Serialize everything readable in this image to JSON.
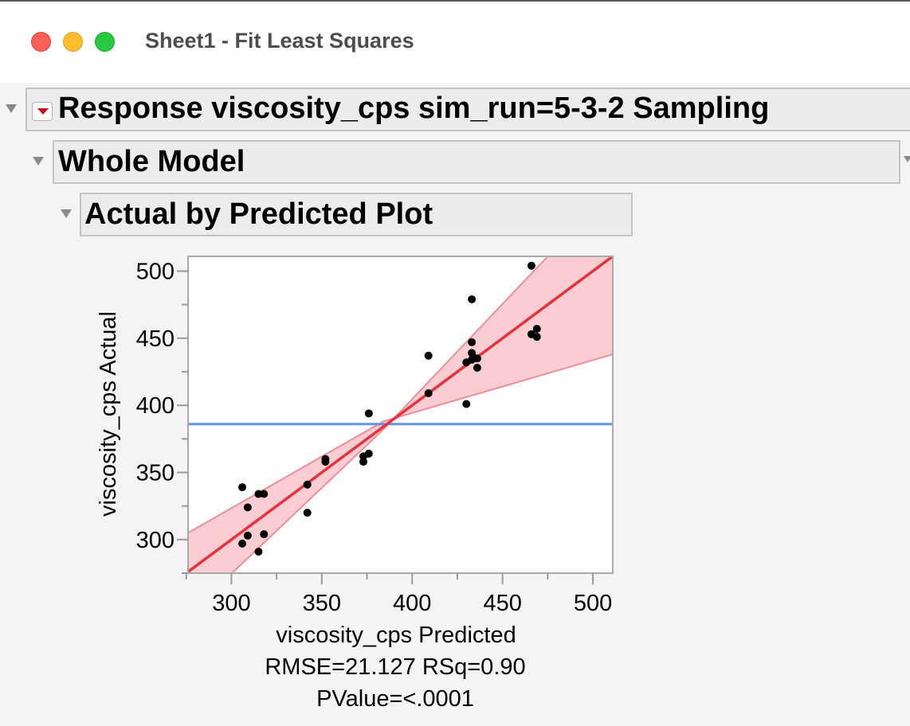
{
  "window": {
    "title": "Sheet1 - Fit Least Squares"
  },
  "report": {
    "response_title": "Response viscosity_cps sim_run=5-3-2 Sampling",
    "whole_model_title": "Whole Model",
    "plot_title": "Actual by Predicted Plot",
    "stats": {
      "rmse_rsq": "RMSE=21.127 RSq=0.90",
      "pvalue": "PValue=<.0001"
    }
  },
  "chart_data": {
    "type": "scatter",
    "xlabel": "viscosity_cps Predicted",
    "ylabel": "viscosity_cps Actual",
    "xlim": [
      276,
      511
    ],
    "ylim": [
      275,
      511
    ],
    "x_ticks": [
      300,
      350,
      400,
      450,
      500
    ],
    "y_ticks": [
      300,
      350,
      400,
      450,
      500
    ],
    "mean_line_y": 386,
    "fit_line": [
      [
        276,
        276
      ],
      [
        511,
        511
      ]
    ],
    "confidence_band": {
      "upper": [
        [
          276,
          305
        ],
        [
          384,
          388
        ],
        [
          511,
          438
        ]
      ],
      "lower": [
        [
          276,
          244
        ],
        [
          384,
          382
        ],
        [
          511,
          562
        ]
      ]
    },
    "points": [
      {
        "x": 306,
        "y": 297
      },
      {
        "x": 306,
        "y": 339
      },
      {
        "x": 309,
        "y": 324
      },
      {
        "x": 309,
        "y": 303
      },
      {
        "x": 315,
        "y": 291
      },
      {
        "x": 315,
        "y": 334
      },
      {
        "x": 318,
        "y": 334
      },
      {
        "x": 318,
        "y": 304
      },
      {
        "x": 342,
        "y": 341
      },
      {
        "x": 342,
        "y": 320
      },
      {
        "x": 352,
        "y": 360
      },
      {
        "x": 352,
        "y": 358
      },
      {
        "x": 373,
        "y": 362
      },
      {
        "x": 373,
        "y": 358
      },
      {
        "x": 376,
        "y": 364
      },
      {
        "x": 376,
        "y": 394
      },
      {
        "x": 409,
        "y": 437
      },
      {
        "x": 409,
        "y": 409
      },
      {
        "x": 430,
        "y": 432
      },
      {
        "x": 430,
        "y": 401
      },
      {
        "x": 433,
        "y": 479
      },
      {
        "x": 433,
        "y": 447
      },
      {
        "x": 433,
        "y": 439
      },
      {
        "x": 433,
        "y": 434
      },
      {
        "x": 436,
        "y": 435
      },
      {
        "x": 436,
        "y": 428
      },
      {
        "x": 466,
        "y": 504
      },
      {
        "x": 466,
        "y": 453
      },
      {
        "x": 469,
        "y": 457
      },
      {
        "x": 469,
        "y": 451
      }
    ],
    "colors": {
      "fit": "#e8313c",
      "band_fill": "#f9cdd2",
      "band_edge": "#ee8e98",
      "mean": "#6a93e6",
      "point": "#000000"
    }
  }
}
